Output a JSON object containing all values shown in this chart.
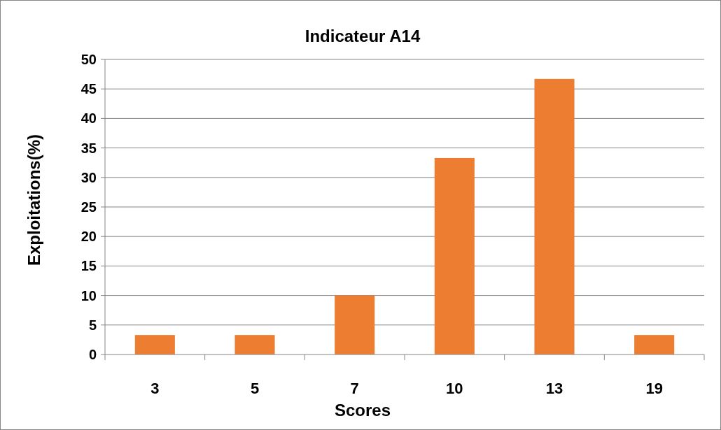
{
  "chart_data": {
    "type": "bar",
    "title": "Indicateur A14",
    "xlabel": "Scores",
    "ylabel": "Exploitations(%)",
    "categories": [
      "3",
      "5",
      "7",
      "10",
      "13",
      "19"
    ],
    "values": [
      3.3,
      3.3,
      10,
      33.3,
      46.7,
      3.3
    ],
    "color": "#ed7d31",
    "ylim": [
      0,
      50
    ],
    "yticks": [
      0,
      5,
      10,
      15,
      20,
      25,
      30,
      35,
      40,
      45,
      50
    ],
    "grid": "y"
  }
}
